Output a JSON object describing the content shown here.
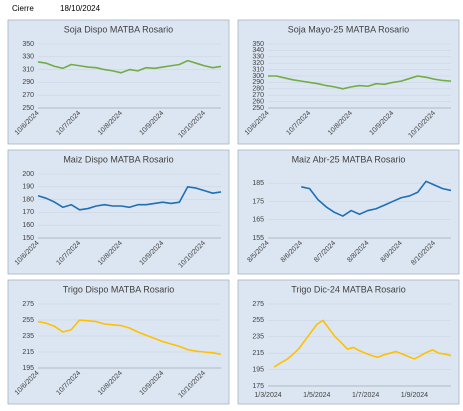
{
  "header": {
    "label": "Cierre",
    "date": "18/10/2024"
  },
  "chart_data": [
    {
      "type": "line",
      "title": "Soja Dispo MATBA Rosario",
      "categories": [
        "10/6/2024",
        null,
        null,
        null,
        null,
        "10/7/2024",
        null,
        null,
        null,
        null,
        "10/8/2024",
        null,
        null,
        null,
        null,
        "10/9/2024",
        null,
        null,
        null,
        null,
        "10/10/2024",
        null,
        null
      ],
      "series": [
        {
          "color": "#70ad47",
          "values": [
            322,
            320,
            315,
            312,
            318,
            316,
            314,
            313,
            310,
            308,
            305,
            310,
            308,
            313,
            312,
            314,
            316,
            318,
            324,
            320,
            316,
            313,
            315
          ]
        }
      ],
      "ylim": [
        250,
        350
      ],
      "yticks": [
        250,
        270,
        290,
        310,
        330,
        350
      ],
      "rotate_x_labels": true
    },
    {
      "type": "line",
      "title": "Soja Mayo-25 MATBA Rosario",
      "categories": [
        "10/6/2024",
        null,
        null,
        null,
        null,
        "10/7/2024",
        null,
        null,
        null,
        null,
        "10/8/2024",
        null,
        null,
        null,
        null,
        "10/9/2024",
        null,
        null,
        null,
        null,
        "10/10/2024",
        null,
        null
      ],
      "series": [
        {
          "color": "#70ad47",
          "values": [
            300,
            300,
            297,
            294,
            292,
            290,
            288,
            285,
            283,
            280,
            283,
            285,
            284,
            288,
            287,
            290,
            292,
            296,
            300,
            298,
            295,
            293,
            292
          ]
        }
      ],
      "ylim": [
        250,
        350
      ],
      "yticks": [
        250,
        260,
        270,
        280,
        290,
        300,
        310,
        320,
        330,
        340,
        350
      ],
      "rotate_x_labels": true
    },
    {
      "type": "line",
      "title": "Maiz Dispo MATBA Rosario",
      "categories": [
        "10/6/2024",
        null,
        null,
        null,
        null,
        "10/7/2024",
        null,
        null,
        null,
        null,
        "10/8/2024",
        null,
        null,
        null,
        null,
        "10/9/2024",
        null,
        null,
        null,
        null,
        "10/10/2024",
        null,
        null
      ],
      "series": [
        {
          "color": "#1f6fb5",
          "values": [
            183,
            181,
            178,
            174,
            176,
            172,
            173,
            175,
            176,
            175,
            175,
            174,
            176,
            176,
            177,
            178,
            177,
            178,
            190,
            189,
            187,
            185,
            186
          ]
        }
      ],
      "ylim": [
        150,
        200
      ],
      "yticks": [
        150,
        160,
        170,
        180,
        190,
        200
      ],
      "rotate_x_labels": true
    },
    {
      "type": "line",
      "title": "Maiz Abr-25 MATBA Rosario",
      "categories": [
        "8/5/2024",
        null,
        null,
        null,
        "8/6/2024",
        null,
        null,
        null,
        "8/7/2024",
        null,
        null,
        null,
        "8/8/2024",
        null,
        null,
        null,
        "8/9/2024",
        null,
        null,
        null,
        "8/10/2024",
        null,
        null
      ],
      "series": [
        {
          "color": "#1f6fb5",
          "values": [
            null,
            null,
            null,
            null,
            183,
            182,
            176,
            172,
            169,
            167,
            170,
            168,
            170,
            171,
            173,
            175,
            177,
            178,
            180,
            186,
            184,
            182,
            181
          ]
        }
      ],
      "ylim": [
        155,
        190
      ],
      "yticks": [
        155,
        165,
        175,
        185
      ],
      "rotate_x_labels": true
    },
    {
      "type": "line",
      "title": "Trigo Dispo MATBA Rosario",
      "categories": [
        "10/6/2024",
        null,
        null,
        null,
        null,
        "10/7/2024",
        null,
        null,
        null,
        null,
        "10/8/2024",
        null,
        null,
        null,
        null,
        "10/9/2024",
        null,
        null,
        null,
        null,
        "10/10/2024",
        null,
        null
      ],
      "series": [
        {
          "color": "#ffc000",
          "values": [
            253,
            251,
            247,
            240,
            243,
            255,
            254,
            253,
            250,
            249,
            248,
            245,
            240,
            236,
            232,
            228,
            225,
            222,
            218,
            216,
            215,
            214,
            212
          ]
        }
      ],
      "ylim": [
        195,
        275
      ],
      "yticks": [
        195,
        215,
        235,
        255,
        275
      ],
      "rotate_x_labels": true
    },
    {
      "type": "line",
      "title": "Trigo Dic-24 MATBA Rosario",
      "categories": [
        "1/3/2024",
        null,
        null,
        null,
        null,
        null,
        null,
        null,
        "1/5/2024",
        null,
        null,
        null,
        null,
        null,
        null,
        null,
        "1/7/2024",
        null,
        null,
        null,
        null,
        null,
        null,
        null,
        "1/9/2024",
        null,
        null,
        null,
        null,
        null,
        null
      ],
      "series": [
        {
          "color": "#ffc000",
          "values": [
            null,
            198,
            203,
            207,
            213,
            220,
            230,
            240,
            250,
            255,
            245,
            235,
            228,
            220,
            222,
            218,
            215,
            212,
            210,
            213,
            215,
            217,
            214,
            211,
            208,
            212,
            216,
            219,
            215,
            214,
            212
          ]
        }
      ],
      "ylim": [
        175,
        275
      ],
      "yticks": [
        175,
        195,
        215,
        235,
        255,
        275
      ],
      "rotate_x_labels": false
    }
  ]
}
